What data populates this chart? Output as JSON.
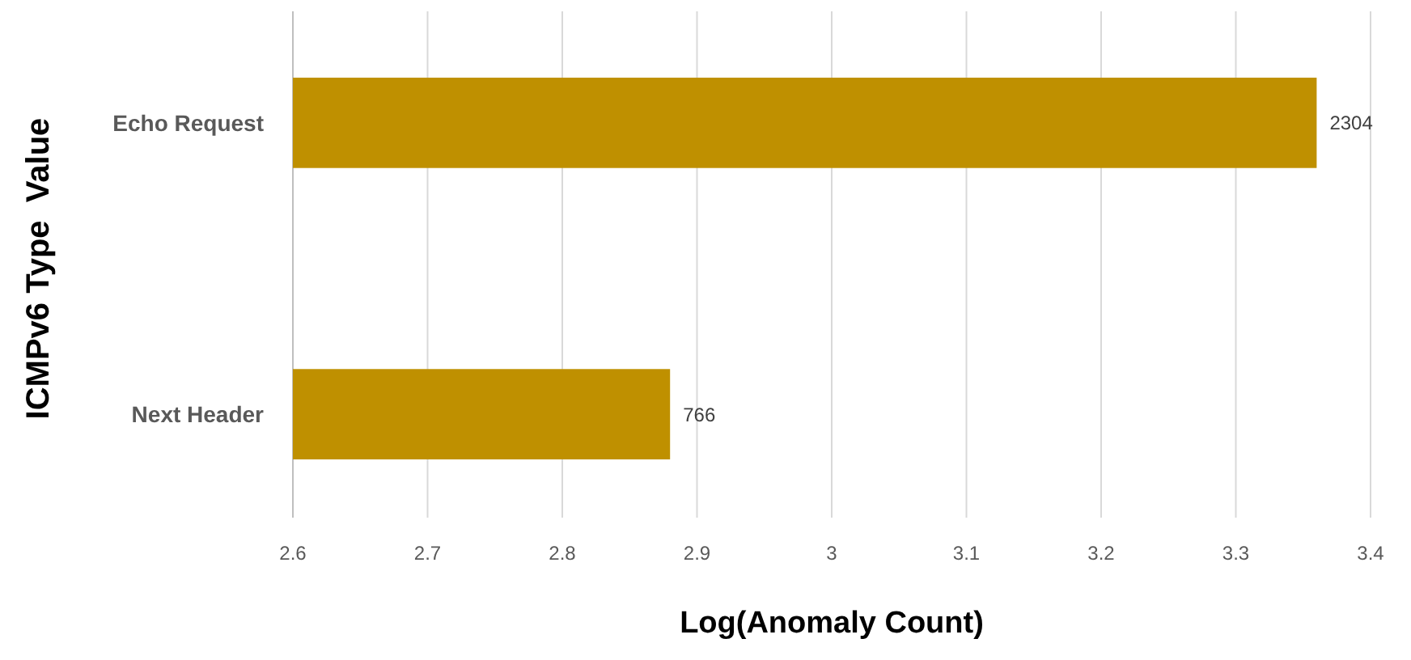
{
  "chart_data": {
    "type": "bar",
    "orientation": "horizontal",
    "xlabel": "Log(Anomaly Count)",
    "ylabel": "ICMPv6 Type  Value",
    "categories": [
      "Echo Request",
      "Next Header"
    ],
    "values": [
      3.36,
      2.88
    ],
    "color": "#bf9000",
    "annotations": [
      {
        "text": "2304",
        "x": 3.36,
        "y": "Echo Request"
      },
      {
        "text": "766",
        "x": 2.88,
        "y": "Next Header"
      }
    ],
    "xlim": [
      2.6,
      3.4
    ],
    "xticks": [
      2.6,
      2.7,
      2.8,
      2.9,
      3,
      3.1,
      3.2,
      3.3,
      3.4
    ],
    "grid": "x"
  }
}
